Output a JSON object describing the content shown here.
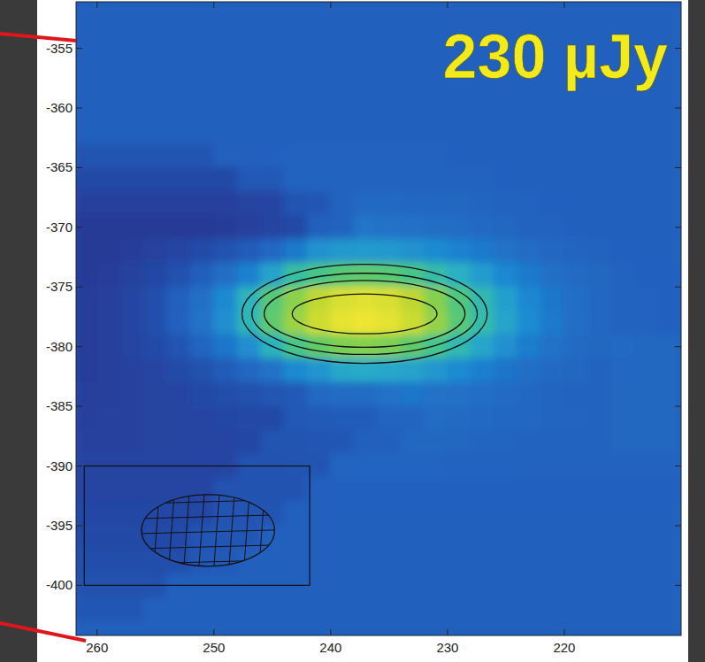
{
  "chart_data": {
    "type": "heatmap",
    "title": "230 µJy",
    "xlim": [
      261.8,
      210
    ],
    "ylim": [
      -404.2,
      -351.1
    ],
    "xticks": [
      260,
      250,
      240,
      230,
      220
    ],
    "yticks": [
      -355,
      -360,
      -365,
      -370,
      -375,
      -380,
      -385,
      -390,
      -395,
      -400
    ],
    "color_range": [
      -10,
      240
    ],
    "x": [
      261,
      259,
      257,
      255,
      253,
      251,
      249,
      247,
      245,
      243,
      241,
      239,
      237,
      235,
      233,
      231,
      229,
      227,
      225,
      223,
      221,
      219,
      217,
      215,
      213,
      211
    ],
    "y": [
      -352,
      -354,
      -356,
      -358,
      -360,
      -362,
      -364,
      -366,
      -368,
      -370,
      -372,
      -374,
      -376,
      -378,
      -380,
      -382,
      -384,
      -386,
      -388,
      -390,
      -392,
      -394,
      -396,
      -398,
      -400,
      -402,
      -404
    ],
    "cells": [
      [
        30,
        30,
        30,
        30,
        30,
        30,
        30,
        30,
        30,
        30,
        30,
        30,
        30,
        30,
        30,
        30,
        30,
        30,
        30,
        30,
        30,
        30,
        30,
        30,
        30,
        30
      ],
      [
        30,
        30,
        30,
        30,
        30,
        30,
        30,
        30,
        30,
        30,
        30,
        30,
        30,
        30,
        30,
        30,
        30,
        30,
        30,
        30,
        30,
        30,
        30,
        30,
        30,
        30
      ],
      [
        30,
        30,
        30,
        30,
        30,
        30,
        30,
        30,
        30,
        30,
        30,
        30,
        30,
        30,
        30,
        30,
        30,
        30,
        30,
        30,
        30,
        30,
        30,
        30,
        30,
        30
      ],
      [
        30,
        30,
        30,
        30,
        30,
        30,
        30,
        30,
        30,
        30,
        30,
        30,
        30,
        30,
        30,
        30,
        30,
        30,
        30,
        30,
        30,
        30,
        30,
        30,
        30,
        30
      ],
      [
        30,
        30,
        30,
        30,
        30,
        30,
        30,
        30,
        30,
        30,
        30,
        30,
        30,
        30,
        30,
        30,
        30,
        30,
        30,
        30,
        30,
        30,
        30,
        30,
        30,
        30
      ],
      [
        30,
        30,
        30,
        30,
        30,
        30,
        30,
        30,
        30,
        30,
        30,
        30,
        30,
        30,
        30,
        30,
        30,
        30,
        30,
        30,
        30,
        30,
        30,
        30,
        30,
        30
      ],
      [
        24,
        24,
        24,
        24,
        24,
        24,
        30,
        30,
        31,
        32,
        32,
        32,
        32,
        32,
        32,
        32,
        31,
        30,
        30,
        30,
        30,
        30,
        30,
        30,
        30,
        30
      ],
      [
        18,
        18,
        18,
        18,
        18,
        18,
        18,
        26,
        26,
        33,
        33,
        33,
        33,
        33,
        33,
        33,
        32,
        32,
        31,
        30,
        30,
        30,
        30,
        30,
        30,
        30
      ],
      [
        13,
        13,
        13,
        13,
        13,
        13,
        13,
        15,
        16,
        24,
        25,
        32,
        37,
        37,
        36,
        36,
        35,
        34,
        33,
        32,
        31,
        30,
        30,
        30,
        30,
        30
      ],
      [
        10,
        10,
        10,
        10,
        10,
        10,
        11,
        13,
        15,
        18,
        30,
        32,
        45,
        44,
        43,
        41,
        39,
        37,
        35,
        33,
        32,
        31,
        30,
        30,
        30,
        30
      ],
      [
        10,
        10,
        12,
        14,
        16,
        19,
        23,
        28,
        36,
        49,
        68,
        73,
        74,
        73,
        68,
        63,
        56,
        49,
        44,
        39,
        36,
        34,
        32,
        31,
        30,
        30
      ],
      [
        10,
        12,
        14,
        17,
        22,
        29,
        41,
        55,
        81,
        113,
        128,
        140,
        144,
        140,
        128,
        110,
        92,
        75,
        60,
        49,
        42,
        38,
        35,
        33,
        31,
        31
      ],
      [
        12,
        13,
        16,
        21,
        30,
        42,
        62,
        97,
        138,
        170,
        199,
        219,
        226,
        218,
        196,
        167,
        134,
        104,
        79,
        61,
        48,
        40,
        36,
        33,
        32,
        31
      ],
      [
        12,
        13,
        16,
        21,
        31,
        44,
        65,
        101,
        144,
        178,
        209,
        231,
        238,
        229,
        207,
        175,
        140,
        108,
        82,
        63,
        49,
        41,
        36,
        33,
        32,
        31
      ],
      [
        12,
        13,
        15,
        19,
        24,
        34,
        47,
        65,
        96,
        128,
        148,
        162,
        166,
        161,
        146,
        126,
        104,
        83,
        66,
        52,
        44,
        38,
        35,
        37,
        35,
        35
      ],
      [
        12,
        13,
        14,
        16,
        19,
        22,
        28,
        36,
        44,
        62,
        70,
        85,
        87,
        85,
        80,
        72,
        63,
        54,
        46,
        41,
        37,
        35,
        33,
        36,
        35,
        35
      ],
      [
        13,
        13,
        14,
        15,
        16,
        18,
        20,
        22,
        25,
        26,
        37,
        39,
        39,
        44,
        47,
        44,
        43,
        40,
        38,
        36,
        34,
        33,
        32,
        35,
        35,
        35
      ],
      [
        13,
        14,
        14,
        15,
        15,
        16,
        17,
        18,
        18,
        26,
        27,
        28,
        28,
        34,
        34,
        39,
        38,
        37,
        36,
        35,
        34,
        34,
        33,
        35,
        35,
        35
      ],
      [
        14,
        14,
        14,
        15,
        15,
        16,
        16,
        17,
        24,
        24,
        25,
        25,
        30,
        30,
        35,
        35,
        35,
        34,
        34,
        33,
        33,
        33,
        32,
        35,
        35,
        35
      ],
      [
        15,
        15,
        15,
        15,
        15,
        16,
        16,
        23,
        23,
        24,
        24,
        34,
        34,
        34,
        34,
        34,
        33,
        33,
        33,
        32,
        32,
        32,
        32,
        32,
        32,
        32
      ],
      [
        16,
        16,
        16,
        16,
        16,
        16,
        23,
        23,
        23,
        23,
        31,
        31,
        31,
        31,
        31,
        31,
        31,
        31,
        31,
        31,
        31,
        31,
        31,
        31,
        31,
        31
      ],
      [
        17,
        17,
        17,
        17,
        17,
        17,
        24,
        24,
        24,
        30,
        30,
        30,
        30,
        30,
        30,
        30,
        30,
        30,
        30,
        30,
        30,
        30,
        30,
        30,
        30,
        30
      ],
      [
        18,
        18,
        18,
        18,
        18,
        25,
        25,
        25,
        30,
        30,
        30,
        30,
        30,
        30,
        30,
        30,
        30,
        30,
        30,
        30,
        30,
        30,
        30,
        30,
        30,
        30
      ],
      [
        20,
        20,
        20,
        20,
        20,
        26,
        26,
        30,
        30,
        30,
        30,
        30,
        30,
        30,
        30,
        30,
        30,
        30,
        30,
        30,
        30,
        30,
        30,
        30,
        30,
        30
      ],
      [
        22,
        22,
        22,
        22,
        30,
        30,
        30,
        30,
        30,
        30,
        30,
        30,
        30,
        30,
        30,
        30,
        30,
        30,
        30,
        30,
        30,
        30,
        30,
        30,
        30,
        30
      ],
      [
        25,
        25,
        25,
        30,
        30,
        30,
        30,
        30,
        30,
        30,
        30,
        30,
        30,
        30,
        30,
        30,
        30,
        30,
        30,
        30,
        30,
        30,
        30,
        30,
        30,
        30
      ],
      [
        30,
        30,
        30,
        30,
        30,
        30,
        30,
        30,
        30,
        30,
        30,
        30,
        30,
        30,
        30,
        30,
        30,
        30,
        30,
        30,
        30,
        30,
        30,
        30,
        30,
        30
      ]
    ],
    "contours": [
      {
        "x": 237.1,
        "y": -377.25,
        "x_radius": 10.5,
        "y_radius": 4.15
      },
      {
        "x": 237.1,
        "y": -377.25,
        "x_radius": 9.65,
        "y_radius": 3.4
      },
      {
        "x": 237.1,
        "y": -377.25,
        "x_radius": 8.6,
        "y_radius": 2.8
      },
      {
        "x": 237.1,
        "y": -377.25,
        "x_radius": 6.2,
        "y_radius": 1.67
      }
    ],
    "beam": {
      "x": 250.5,
      "y": -395.4,
      "x_radius": 5.7,
      "y_radius": 3.0
    },
    "beam_box": {
      "xlim": [
        261.1,
        241.8
      ],
      "ylim": [
        -400,
        -390
      ]
    }
  }
}
